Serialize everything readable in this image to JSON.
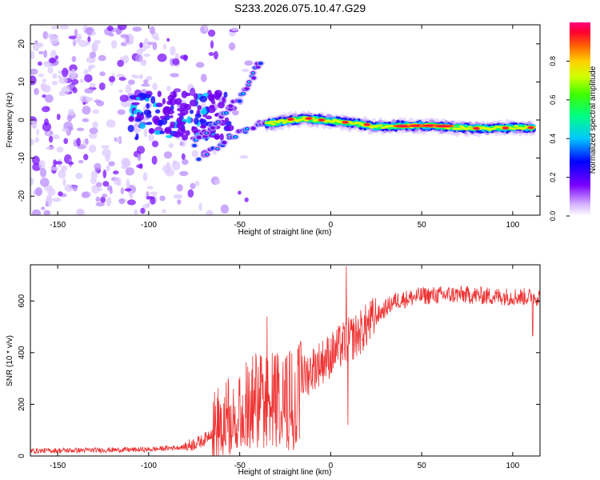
{
  "title": "S233.2026.075.10.47.G29",
  "chart_data": [
    {
      "type": "heatmap",
      "name": "spectrogram",
      "xlabel": "Height of straight line (km)",
      "ylabel": "Frequency (Hz)",
      "xlim": [
        -165,
        115
      ],
      "ylim": [
        -25,
        25
      ],
      "xticks": [
        -150,
        -100,
        -50,
        0,
        50,
        100
      ],
      "yticks": [
        -20,
        -10,
        0,
        10,
        20
      ],
      "colorbar": {
        "label": "Normalized spectral amplitude",
        "range": [
          0,
          1
        ],
        "ticks": [
          0.0,
          0.2,
          0.4,
          0.6,
          0.8
        ]
      },
      "ridge": {
        "description": "dominant frequency trace",
        "points": [
          [
            -35,
            -1
          ],
          [
            -25,
            -0.3
          ],
          [
            -15,
            0.3
          ],
          [
            -5,
            0
          ],
          [
            5,
            -0.5
          ],
          [
            15,
            -1
          ],
          [
            25,
            -1.8
          ],
          [
            40,
            -1.5
          ],
          [
            55,
            -1.5
          ],
          [
            70,
            -2
          ],
          [
            85,
            -2.2
          ],
          [
            100,
            -2
          ],
          [
            112,
            -2
          ]
        ]
      },
      "branches": [
        {
          "points": [
            [
              -75,
              -6
            ],
            [
              -68,
              -3
            ],
            [
              -60,
              1
            ],
            [
              -52,
              5
            ],
            [
              -44,
              10
            ],
            [
              -38,
              16
            ]
          ]
        },
        {
          "points": [
            [
              -72,
              -10
            ],
            [
              -60,
              -6
            ],
            [
              -50,
              -3
            ],
            [
              -40,
              -1
            ],
            [
              -35,
              -0.5
            ]
          ]
        }
      ]
    },
    {
      "type": "line",
      "name": "snr",
      "xlabel": "Height of straight line (km)",
      "ylabel": "SNR (10 * v/v)",
      "xlim": [
        -165,
        115
      ],
      "ylim": [
        0,
        740
      ],
      "xticks": [
        -150,
        -100,
        -50,
        0,
        50,
        100
      ],
      "yticks": [
        0,
        200,
        400,
        600
      ],
      "color": "#ee3333",
      "envelope": [
        {
          "x": -165,
          "y": 20
        },
        {
          "x": -100,
          "y": 25
        },
        {
          "x": -80,
          "y": 35
        },
        {
          "x": -70,
          "y": 60
        },
        {
          "x": -60,
          "y": 130
        },
        {
          "x": -50,
          "y": 200
        },
        {
          "x": -40,
          "y": 250
        },
        {
          "x": -30,
          "y": 240
        },
        {
          "x": -20,
          "y": 260
        },
        {
          "x": -10,
          "y": 340
        },
        {
          "x": 0,
          "y": 390
        },
        {
          "x": 8,
          "y": 440
        },
        {
          "x": 15,
          "y": 470
        },
        {
          "x": 25,
          "y": 540
        },
        {
          "x": 35,
          "y": 600
        },
        {
          "x": 50,
          "y": 620
        },
        {
          "x": 70,
          "y": 625
        },
        {
          "x": 90,
          "y": 618
        },
        {
          "x": 115,
          "y": 615
        }
      ],
      "spikes": [
        {
          "x": 8.5,
          "y": 735
        },
        {
          "x": 9.5,
          "y": 120
        },
        {
          "x": -35,
          "y": 540
        },
        {
          "x": -30,
          "y": 35
        },
        {
          "x": 111,
          "y": 465
        }
      ]
    }
  ]
}
